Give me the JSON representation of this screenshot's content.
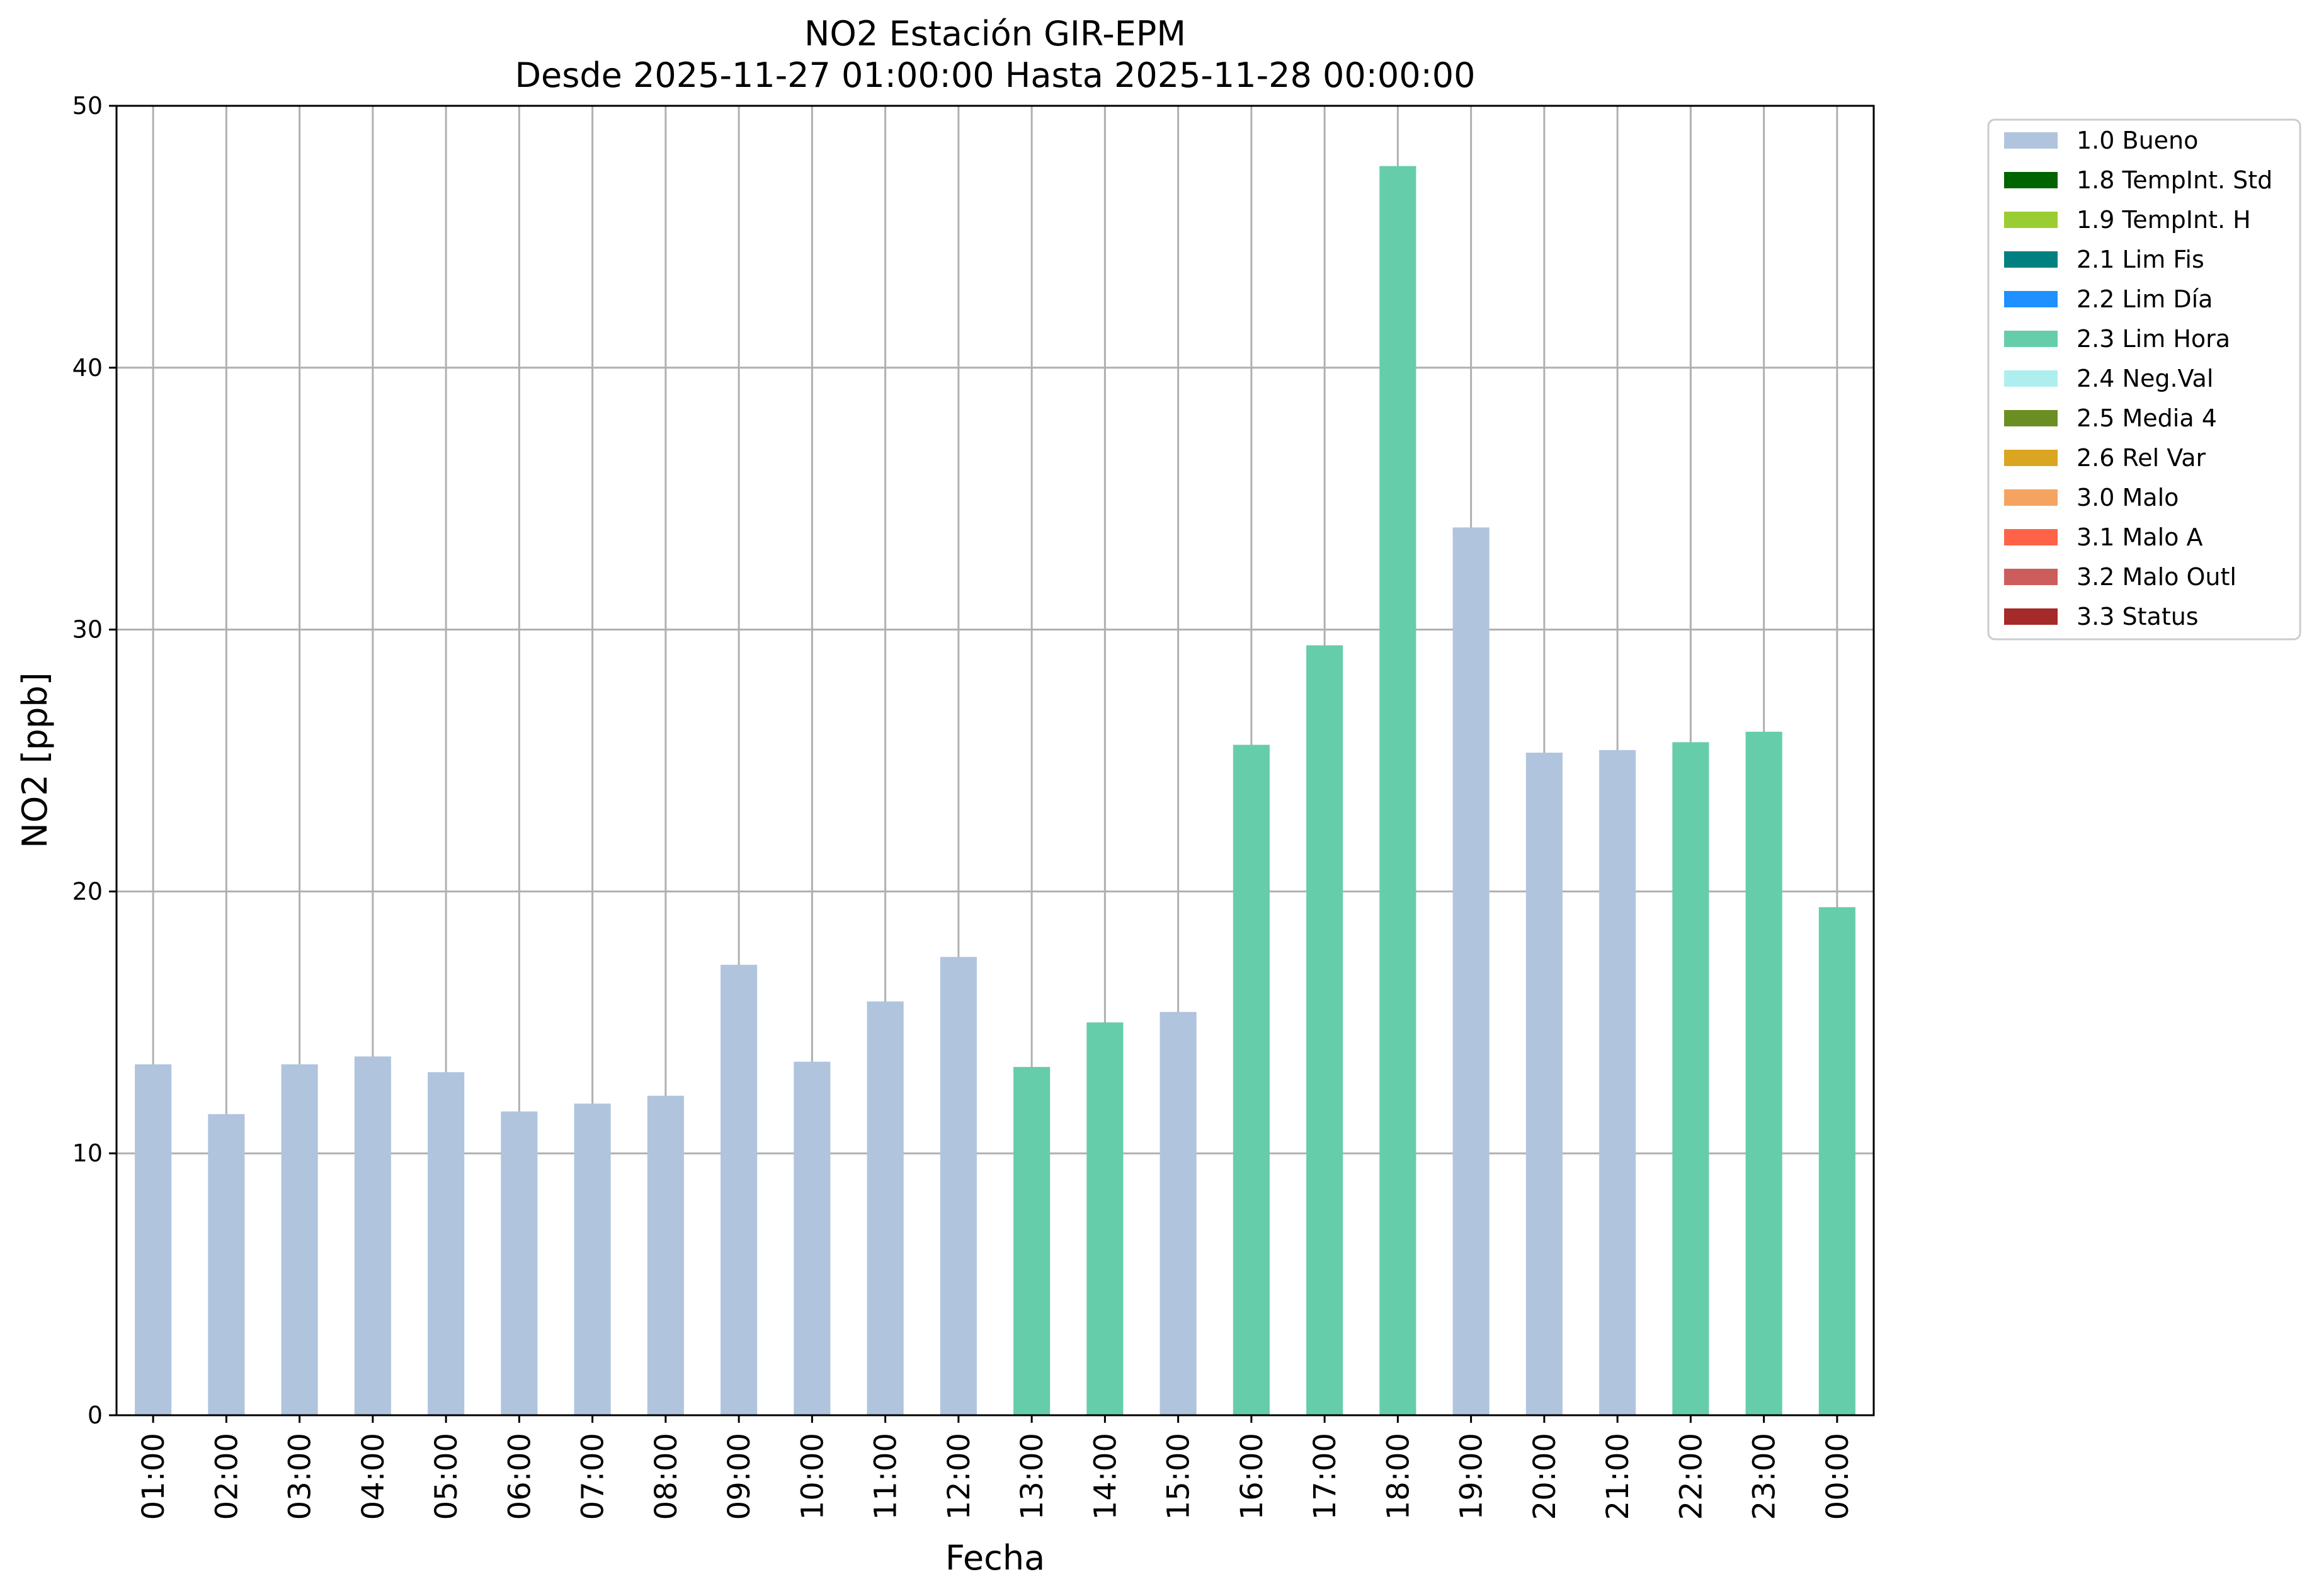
{
  "chart_data": {
    "type": "bar",
    "title": "NO2 Estación GIR-EPM",
    "subtitle": "Desde 2025-11-27 01:00:00 Hasta 2025-11-28 00:00:00",
    "xlabel": "Fecha",
    "ylabel": "NO2 [ppb]",
    "ylim": [
      0,
      50
    ],
    "yticks": [
      0,
      10,
      20,
      30,
      40,
      50
    ],
    "grid": true,
    "legend_position": "outside-top-right",
    "categories": [
      "01:00",
      "02:00",
      "03:00",
      "04:00",
      "05:00",
      "06:00",
      "07:00",
      "08:00",
      "09:00",
      "10:00",
      "11:00",
      "12:00",
      "13:00",
      "14:00",
      "15:00",
      "16:00",
      "17:00",
      "18:00",
      "19:00",
      "20:00",
      "21:00",
      "22:00",
      "23:00",
      "00:00"
    ],
    "values": [
      13.4,
      11.5,
      13.4,
      13.7,
      13.1,
      11.6,
      11.9,
      12.2,
      17.2,
      13.5,
      15.8,
      17.5,
      13.3,
      15.0,
      15.4,
      25.6,
      29.4,
      47.7,
      33.9,
      25.3,
      25.4,
      25.7,
      26.1,
      19.4
    ],
    "flags": [
      "1.0 Bueno",
      "1.0 Bueno",
      "1.0 Bueno",
      "1.0 Bueno",
      "1.0 Bueno",
      "1.0 Bueno",
      "1.0 Bueno",
      "1.0 Bueno",
      "1.0 Bueno",
      "1.0 Bueno",
      "1.0 Bueno",
      "1.0 Bueno",
      "2.3 Lim Hora",
      "2.3 Lim Hora",
      "1.0 Bueno",
      "2.3 Lim Hora",
      "2.3 Lim Hora",
      "2.3 Lim Hora",
      "1.0 Bueno",
      "1.0 Bueno",
      "1.0 Bueno",
      "2.3 Lim Hora",
      "2.3 Lim Hora",
      "2.3 Lim Hora"
    ],
    "legend": [
      {
        "name": "1.0 Bueno",
        "color": "#b0c4de"
      },
      {
        "name": "1.8 TempInt. Std",
        "color": "#006400"
      },
      {
        "name": "1.9 TempInt. H",
        "color": "#9acd32"
      },
      {
        "name": "2.1 Lim Fis",
        "color": "#008080"
      },
      {
        "name": "2.2 Lim Día",
        "color": "#1e90ff"
      },
      {
        "name": "2.3 Lim Hora",
        "color": "#66cdaa"
      },
      {
        "name": "2.4 Neg.Val",
        "color": "#afeeee"
      },
      {
        "name": "2.5 Media 4",
        "color": "#6b8e23"
      },
      {
        "name": "2.6 Rel Var",
        "color": "#daa520"
      },
      {
        "name": "3.0 Malo",
        "color": "#f4a460"
      },
      {
        "name": "3.1 Malo A",
        "color": "#ff6347"
      },
      {
        "name": "3.2 Malo Outl",
        "color": "#cd5c5c"
      },
      {
        "name": "3.3 Status",
        "color": "#a52a2a"
      }
    ]
  }
}
